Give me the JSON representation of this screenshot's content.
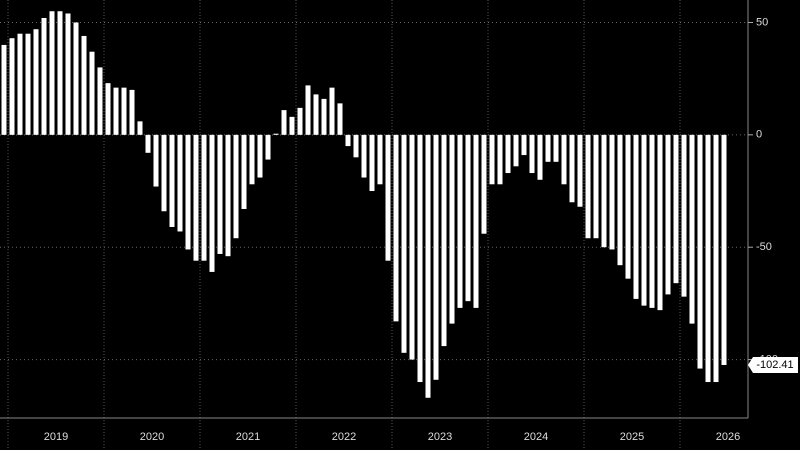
{
  "chart_data": {
    "type": "bar",
    "color": "#ffffff",
    "categories": [
      null,
      null,
      null,
      null,
      null,
      null,
      null,
      null,
      null,
      null,
      null,
      null,
      null,
      null,
      null,
      null,
      null,
      null,
      null,
      null,
      null,
      null,
      null,
      null,
      null,
      null,
      null,
      null,
      null,
      null,
      null,
      null,
      null,
      null,
      null,
      null,
      null,
      null,
      null,
      null,
      null,
      null,
      null,
      null,
      null,
      null,
      null,
      null,
      null,
      null,
      null,
      null,
      null,
      null,
      null,
      null,
      null,
      null,
      null,
      null,
      null,
      null,
      null,
      null,
      null,
      null,
      null,
      null,
      null,
      null,
      null,
      null,
      null,
      null,
      null,
      null,
      null,
      null,
      null,
      null,
      null,
      null,
      null,
      null,
      null,
      null,
      null,
      null,
      null,
      null,
      null
    ],
    "values": [
      40,
      43,
      45,
      45,
      47,
      52,
      55,
      55,
      54,
      50,
      44,
      37,
      30,
      23,
      21,
      21,
      20,
      6,
      -8,
      -23,
      -34,
      -41,
      -43,
      -51,
      -56,
      -56,
      -61,
      -53,
      -54,
      -46,
      -33,
      -22,
      -19,
      -11,
      0.5,
      11,
      8,
      12,
      22,
      18,
      16,
      21,
      14,
      -5,
      -10,
      -19,
      -25,
      -22,
      -56,
      -83,
      -97,
      -100,
      -110,
      -117,
      -109,
      -94,
      -84,
      -77,
      -74,
      -77,
      -44,
      -22,
      -22,
      -17,
      -14,
      -9,
      -17,
      -20,
      -12,
      -12,
      -22,
      -30,
      -32,
      -46,
      -46,
      -50,
      -51,
      -58,
      -64,
      -73,
      -76,
      -77,
      -78,
      -71,
      -66,
      -72,
      -84,
      -104,
      -110,
      -110,
      -102.41
    ],
    "x_group_labels": [
      "2019",
      "2020",
      "2021",
      "2022",
      "2023",
      "2024",
      "2025",
      "2026"
    ],
    "ylim": [
      -126,
      60
    ],
    "yticks": [
      50,
      0,
      -50,
      -100
    ],
    "grid": true
  }
}
